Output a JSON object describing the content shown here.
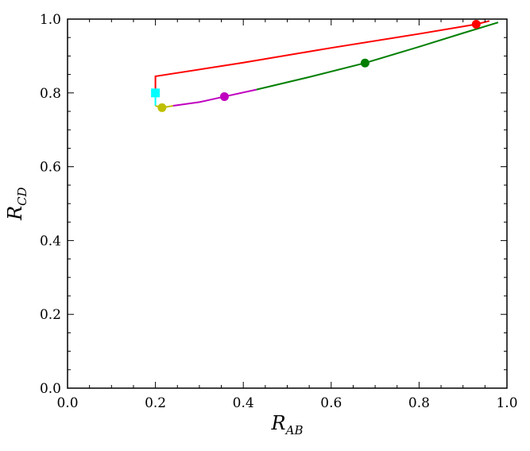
{
  "chart_data": {
    "type": "line",
    "xlabel": {
      "main": "R",
      "sub": "AB"
    },
    "ylabel": {
      "main": "R",
      "sub": "CD"
    },
    "xlim": [
      0.0,
      1.0
    ],
    "ylim": [
      0.0,
      1.0
    ],
    "xticks": [
      "0.0",
      "0.2",
      "0.4",
      "0.6",
      "0.8",
      "1.0"
    ],
    "yticks": [
      "0.0",
      "0.2",
      "0.4",
      "0.6",
      "0.8",
      "1.0"
    ],
    "grid": false,
    "series": [
      {
        "color": "#00ffff",
        "points": [
          [
            0.2,
            0.765
          ],
          [
            0.2,
            0.8
          ]
        ],
        "marker": {
          "shape": "square",
          "x": 0.2,
          "y": 0.8
        }
      },
      {
        "color": "#ff0000",
        "points": [
          [
            0.2,
            0.8
          ],
          [
            0.2,
            0.845
          ],
          [
            0.4,
            0.882
          ],
          [
            0.6,
            0.922
          ],
          [
            0.8,
            0.96
          ],
          [
            0.93,
            0.986
          ],
          [
            0.96,
            0.995
          ]
        ],
        "marker": {
          "shape": "circle",
          "x": 0.93,
          "y": 0.986
        }
      },
      {
        "color": "#bfbf00",
        "points": [
          [
            0.2,
            0.765
          ],
          [
            0.215,
            0.76
          ],
          [
            0.24,
            0.765
          ]
        ],
        "marker": {
          "shape": "circle",
          "x": 0.215,
          "y": 0.76
        }
      },
      {
        "color": "#bf00bf",
        "points": [
          [
            0.24,
            0.765
          ],
          [
            0.3,
            0.775
          ],
          [
            0.357,
            0.79
          ],
          [
            0.43,
            0.809
          ]
        ],
        "marker": {
          "shape": "circle",
          "x": 0.357,
          "y": 0.79
        }
      },
      {
        "color": "#007f00",
        "points": [
          [
            0.43,
            0.809
          ],
          [
            0.55,
            0.843
          ],
          [
            0.677,
            0.881
          ],
          [
            0.8,
            0.925
          ],
          [
            0.9,
            0.962
          ],
          [
            0.98,
            0.991
          ]
        ],
        "marker": {
          "shape": "circle",
          "x": 0.677,
          "y": 0.881
        }
      }
    ]
  }
}
